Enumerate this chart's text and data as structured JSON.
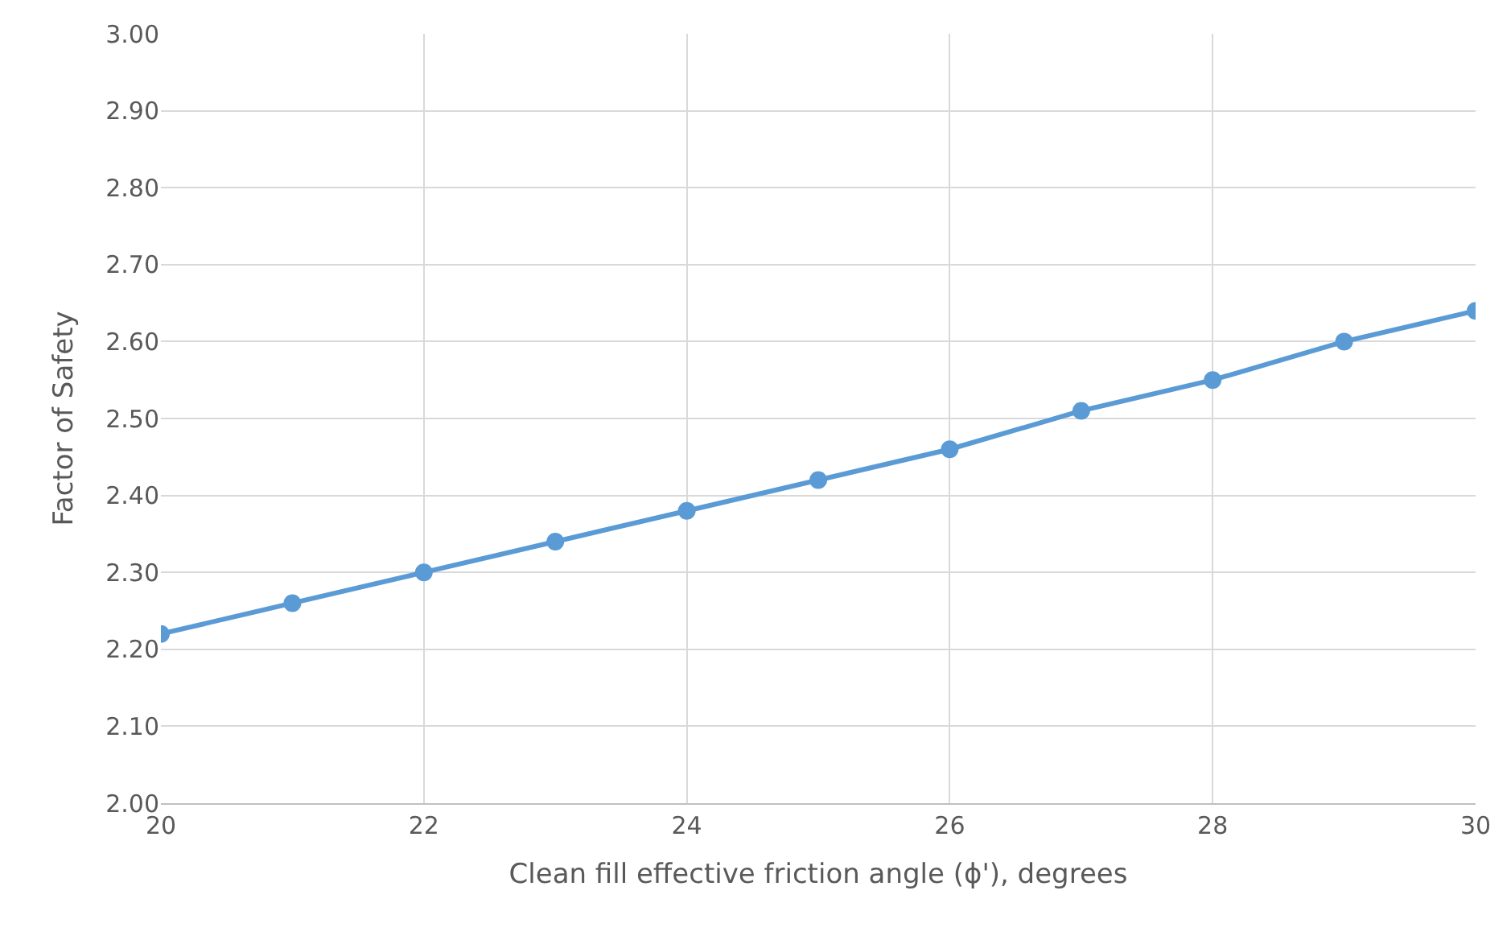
{
  "chart_data": {
    "type": "line",
    "xlabel": "Clean fill effective friction angle (ϕ'), degrees",
    "ylabel": "Factor of Safety",
    "x": [
      20,
      21,
      22,
      23,
      24,
      25,
      26,
      27,
      28,
      29,
      30
    ],
    "series": [
      {
        "color": "#5b9bd5",
        "values": [
          2.22,
          2.26,
          2.3,
          2.34,
          2.38,
          2.42,
          2.46,
          2.51,
          2.55,
          2.6,
          2.64
        ]
      }
    ],
    "xlim": [
      20,
      30
    ],
    "xticks": [
      20,
      22,
      24,
      26,
      28,
      30
    ],
    "ylim": [
      2.0,
      3.0
    ],
    "yticks": [
      {
        "value": 2.0,
        "label": "2.00"
      },
      {
        "value": 2.1,
        "label": "2.10"
      },
      {
        "value": 2.2,
        "label": "2.20"
      },
      {
        "value": 2.3,
        "label": "2.30"
      },
      {
        "value": 2.4,
        "label": "2.40"
      },
      {
        "value": 2.5,
        "label": "2.50"
      },
      {
        "value": 2.6,
        "label": "2.60"
      },
      {
        "value": 2.7,
        "label": "2.70"
      },
      {
        "value": 2.8,
        "label": "2.80"
      },
      {
        "value": 2.9,
        "label": "2.90"
      },
      {
        "value": 3.0,
        "label": "3.00"
      }
    ],
    "grid": true,
    "marker": "circle",
    "line_style": "solid"
  }
}
